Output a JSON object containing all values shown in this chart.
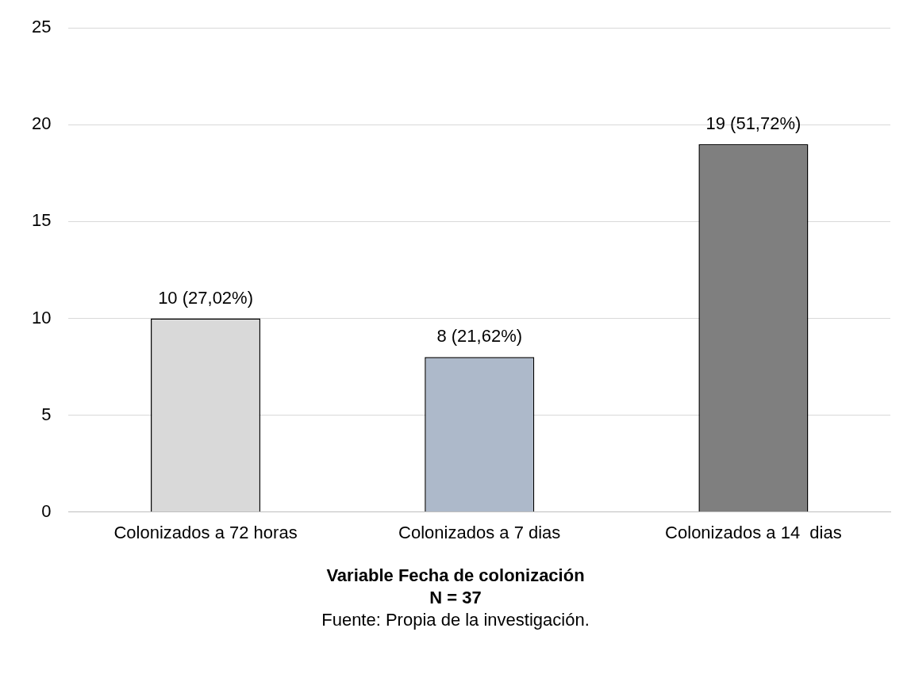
{
  "chart_data": {
    "type": "bar",
    "categories": [
      "Colonizados a 72 horas",
      "Colonizados a 7 dias",
      "Colonizados a 14  dias"
    ],
    "values": [
      10,
      8,
      19
    ],
    "colors": [
      "#d9d9d9",
      "#adb9ca",
      "#7f7f7f"
    ],
    "value_labels": [
      "10 (27,02%)",
      "8 (21,62%)",
      "19 (51,72%)"
    ],
    "ylim": [
      0,
      25
    ],
    "yticks": [
      0,
      5,
      10,
      15,
      20,
      25
    ],
    "grid": "y",
    "legend": false,
    "xlabel": "Variable Fecha de colonización",
    "annotations": [
      "N = 37",
      "Fuente: Propia de la investigación."
    ]
  }
}
